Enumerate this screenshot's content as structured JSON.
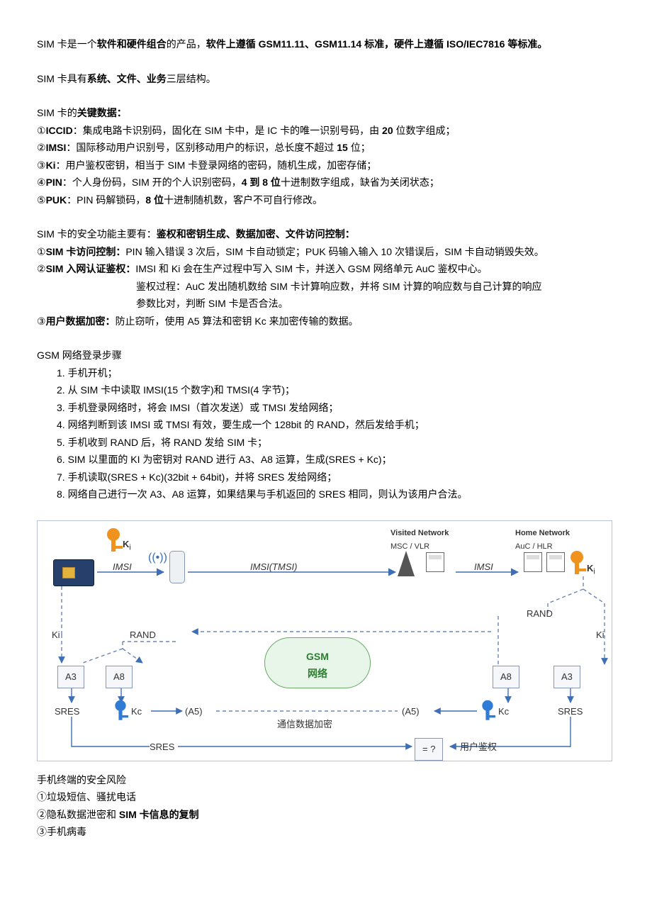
{
  "intro1_a": "SIM 卡是一个",
  "intro1_b": "软件和硬件组合",
  "intro1_c": "的产品，",
  "intro1_d": "软件上遵循 GSM11.11、GSM11.14 标准，硬件上遵循 ISO/IEC7816 等标准。",
  "intro2_a": "SIM 卡具有",
  "intro2_b": "系统、文件、业务",
  "intro2_c": "三层结构。",
  "keydata_title_a": "SIM 卡的",
  "keydata_title_b": "关键数据：",
  "keydata": [
    {
      "num": "①",
      "name": "ICCID",
      "rest": "：集成电路卡识别码，固化在 SIM 卡中，是 IC 卡的唯一识别号码，由",
      "bold2": " 20 ",
      "tail": "位数字组成；"
    },
    {
      "num": "②",
      "name": "IMSI",
      "rest": "：国际移动用户识别号，区别移动用户的标识，总长度不超过",
      "bold2": " 15 ",
      "tail": "位；"
    },
    {
      "num": "③",
      "name": "Ki",
      "rest": "：用户鉴权密钥，相当于 SIM 卡登录网络的密码，随机生成，加密存储；",
      "bold2": "",
      "tail": ""
    },
    {
      "num": "④",
      "name": "PIN",
      "rest": "：个人身份码，SIM 开的个人识别密码，",
      "bold2": "4 到 8 位",
      "tail": "十进制数字组成，缺省为关闭状态；"
    },
    {
      "num": "⑤",
      "name": "PUK",
      "rest": "：PIN 码解锁码，",
      "bold2": "8 位",
      "tail": "十进制随机数，客户不可自行修改。"
    }
  ],
  "sec_title_a": "SIM 卡的安全功能主要有：",
  "sec_title_b": "鉴权和密钥生成、数据加密、文件访问控制：",
  "sec1_num": "①",
  "sec1_name": "SIM 卡访问控制：",
  "sec1_rest": "PIN 输入错误 3 次后，SIM 卡自动锁定；PUK 码输入输入 10 次错误后，SIM 卡自动销毁失效。",
  "sec2_num": "②",
  "sec2_name": "SIM 入网认证鉴权：",
  "sec2_rest": "IMSI 和 Ki 会在生产过程中写入 SIM 卡，并送入 GSM 网络单元 AuC 鉴权中心。",
  "sec2_line2": "鉴权过程：AuC 发出随机数给 SIM 卡计算响应数，并将 SIM 计算的响应数与自己计算的响应",
  "sec2_line3": "参数比对，判断 SIM 卡是否合法。",
  "sec3_num": "③",
  "sec3_name": "用户数据加密：",
  "sec3_rest": "防止窃听，使用 A5 算法和密钥 Kc 来加密传输的数据。",
  "gsm_title": "GSM 网络登录步骤",
  "gsm_steps": [
    "1. 手机开机；",
    "2. 从 SIM 卡中读取 IMSI(15 个数字)和 TMSI(4 字节)；",
    "3. 手机登录网络时，将会 IMSI（首次发送）或 TMSI 发给网络；",
    "4. 网络判断到该 IMSI 或 TMSI 有效，要生成一个 128bit 的 RAND，然后发给手机；",
    "5. 手机收到 RAND 后，将 RAND 发给 SIM 卡；",
    "6. SIM 以里面的 KI 为密钥对 RAND 进行 A3、A8 运算，生成(SRES + Kc)；",
    "7. 手机读取(SRES + Kc)(32bit + 64bit)，并将 SRES 发给网络；",
    "8. 网络自己进行一次 A3、A8 运算，如果结果与手机返回的 SRES 相同，则认为该用户合法。"
  ],
  "diagram": {
    "visited_net": "Visited Network",
    "msc": "MSC / VLR",
    "home_net": "Home Network",
    "auc": "AuC / HLR",
    "ki": "K",
    "ki_sub": "i",
    "imsi": "IMSI",
    "imsi_tmsi": "IMSI(TMSI)",
    "rand": "RAND",
    "ki_left": "Ki",
    "ki_right": "Ki",
    "a3": "A3",
    "a8": "A8",
    "sres": "SRES",
    "kc": "Kc",
    "a5": "(A5)",
    "gsm_net_l1": "GSM",
    "gsm_net_l2": "网络",
    "encrypt": "通信数据加密",
    "eq": "= ?",
    "auth": "用户鉴权",
    "colors": {
      "key_orange": "#f0921e",
      "key_blue": "#2f7bd6",
      "arrow": "#3f6fb3",
      "dash": "#6b86b3"
    }
  },
  "risk_title": "手机终端的安全风险",
  "risk1": "①垃圾短信、骚扰电话",
  "risk2_a": "②隐私数据泄密和 ",
  "risk2_b": "SIM 卡信息的复制",
  "risk3": "③手机病毒"
}
